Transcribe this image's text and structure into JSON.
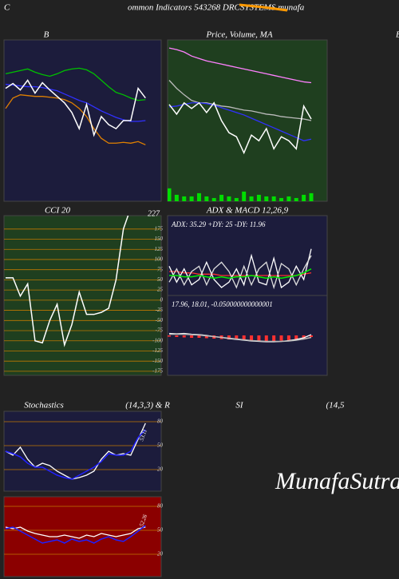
{
  "header": {
    "left": "C",
    "title": "ommon Indicators 543268 DRCSYSTEMS munafa"
  },
  "watermark": "MunafaSutra.com",
  "chart_data": [
    {
      "type": "line",
      "title": "B",
      "background": "#1c1c3c",
      "ylim": [
        0,
        100
      ],
      "series": [
        {
          "color": "#00c000",
          "values": [
            79,
            80,
            81,
            82,
            80,
            78.5,
            77.5,
            79,
            81,
            82,
            82.5,
            81.5,
            79,
            75,
            71,
            67.5,
            66,
            64,
            62.5,
            63
          ]
        },
        {
          "color": "#3030ff",
          "values": [
            72.5,
            72,
            71.5,
            71,
            71,
            70.5,
            69.5,
            68.5,
            66.5,
            64.5,
            62.5,
            61,
            58.5,
            56,
            54,
            52,
            50.5,
            49.5,
            49.5,
            50
          ]
        },
        {
          "color": "#e08000",
          "values": [
            57.5,
            64,
            66,
            65.5,
            65,
            65,
            64.5,
            64,
            63,
            61,
            57.5,
            52.5,
            45,
            39,
            36,
            36,
            36.5,
            36,
            37,
            35
          ]
        },
        {
          "color": "#ffffff",
          "values": [
            70,
            73,
            69,
            75,
            67,
            73.5,
            69,
            65,
            61,
            55,
            45,
            60,
            41,
            52.5,
            47.5,
            45,
            50,
            50,
            70,
            64
          ]
        }
      ]
    },
    {
      "type": "line",
      "title": "Price, Volume, MA",
      "side_label": "B",
      "background": "#1f3f1f",
      "ylim": [
        0,
        100
      ],
      "series": [
        {
          "color": "#ff80ff",
          "values": [
            95,
            94,
            92.5,
            90,
            88.5,
            87,
            86,
            85,
            84,
            83,
            82,
            81,
            80,
            79,
            78,
            77,
            76,
            75,
            74,
            73.5
          ]
        },
        {
          "color": "#bbbbbb",
          "values": [
            75,
            70,
            66,
            62.5,
            61,
            61,
            60,
            59,
            58.5,
            57.5,
            56.5,
            56,
            55,
            54,
            53.5,
            52.5,
            52,
            51.5,
            51,
            50
          ]
        },
        {
          "color": "#3030ff",
          "values": [
            58.5,
            59,
            60,
            61,
            61,
            60.5,
            59.5,
            58,
            56.5,
            55,
            53.5,
            51.5,
            49.5,
            47.5,
            45.5,
            43.5,
            41.5,
            39.5,
            37.5,
            38.5
          ]
        },
        {
          "color": "#ffffff",
          "values": [
            60,
            54,
            61,
            57.5,
            61,
            55,
            61,
            50,
            42.5,
            40,
            30,
            41,
            37.5,
            45,
            32.5,
            40,
            37.5,
            32.5,
            59,
            51
          ]
        }
      ],
      "volume": {
        "color": "#00dd00",
        "ylim": [
          0,
          100
        ],
        "values": [
          8,
          4,
          3,
          3,
          5,
          3,
          2,
          4,
          3,
          2,
          6,
          3,
          4,
          3,
          3,
          2,
          3,
          2,
          4,
          5
        ]
      }
    },
    {
      "type": "line",
      "title": "CCI 20",
      "background": "#1f3f1f",
      "ylim": [
        -185,
        208
      ],
      "yticks": [
        175,
        150,
        125,
        100,
        75,
        50,
        25,
        0,
        -25,
        -50,
        -75,
        -100,
        -125,
        -150,
        -175
      ],
      "grid": true,
      "grid_color": "#c07800",
      "readout": 227,
      "series": [
        {
          "color": "#ffffff",
          "values": [
            55,
            55,
            10,
            40,
            -100,
            -105,
            -50,
            -10,
            -110,
            -60,
            20,
            -35,
            -35,
            -30,
            -20,
            50,
            175,
            227,
            227,
            227
          ]
        }
      ]
    },
    {
      "type": "line",
      "title": "ADX  & MACD 12,26,9",
      "readout_text": "ADX: 35.29 +DY: 25 -DY: 11.96",
      "background": "#1c1c3c",
      "ylim": [
        0,
        60
      ],
      "series": [
        {
          "color": "#ff3030",
          "values": [
            18,
            18,
            17,
            17,
            16,
            16,
            16,
            15,
            15,
            15,
            15,
            15,
            15,
            15,
            15,
            15,
            15,
            15,
            16,
            17
          ]
        },
        {
          "color": "#ffffff",
          "values": [
            22,
            10,
            20,
            8,
            12,
            25,
            12,
            6,
            10,
            20,
            8,
            30,
            10,
            8,
            28,
            6,
            10,
            22,
            12,
            35
          ]
        },
        {
          "color": "#dddddd",
          "values": [
            10,
            20,
            8,
            18,
            22,
            8,
            20,
            25,
            18,
            6,
            22,
            8,
            20,
            25,
            6,
            24,
            20,
            8,
            20,
            30
          ]
        },
        {
          "color": "#00ee00",
          "values": [
            15,
            15,
            14,
            14,
            15,
            14,
            13,
            14,
            13,
            14,
            14,
            15,
            14,
            13,
            14,
            13,
            14,
            15,
            17,
            20
          ]
        }
      ]
    },
    {
      "type": "line",
      "readout_text": "17.96, 18.01, -0.050000000000001",
      "background": "#1c1c3c",
      "ylim": [
        -10,
        10
      ],
      "bars": {
        "color": "#ff3030",
        "values": [
          -0.3,
          -0.4,
          -0.5,
          -0.6,
          -0.6,
          -0.7,
          -0.8,
          -0.9,
          -1,
          -1.1,
          -1.2,
          -1.3,
          -1.3,
          -1.4,
          -1.4,
          -1.3,
          -1.2,
          -1,
          -0.8,
          -0.4
        ]
      },
      "series": [
        {
          "color": "#ffffff",
          "values": [
            0.5,
            0.4,
            0.5,
            0.3,
            0.2,
            0,
            -0.3,
            -0.5,
            -0.8,
            -1,
            -1.2,
            -1.4,
            -1.5,
            -1.6,
            -1.6,
            -1.5,
            -1.3,
            -1,
            -0.6,
            0.2
          ]
        },
        {
          "color": "#bbbbbb",
          "values": [
            0.3,
            0.3,
            0.3,
            0.2,
            0.1,
            -0.1,
            -0.3,
            -0.5,
            -0.7,
            -0.9,
            -1.1,
            -1.3,
            -1.4,
            -1.5,
            -1.5,
            -1.5,
            -1.4,
            -1.2,
            -0.9,
            -0.5
          ]
        }
      ]
    },
    {
      "type": "line",
      "title": "Stochastics",
      "subtitle": "(14,3,3) & R",
      "background": "#1c1c3c",
      "ylim": [
        -7,
        93
      ],
      "yticks": [
        80,
        50,
        20
      ],
      "grid": true,
      "grid_color": "#c07800",
      "readout": 53.11,
      "series": [
        {
          "color": "#ffffff",
          "values": [
            43,
            38,
            48,
            33,
            23,
            28,
            25,
            18,
            13,
            8,
            10,
            13,
            18,
            33,
            43,
            38,
            40,
            38,
            58,
            78
          ]
        },
        {
          "color": "#2020ff",
          "values": [
            43,
            40,
            36,
            28,
            23,
            23,
            18,
            13,
            10,
            8,
            13,
            18,
            23,
            30,
            40,
            38,
            38,
            43,
            60,
            70
          ]
        }
      ]
    },
    {
      "type": "line",
      "title": "SI",
      "subtitle": "(14,5",
      "background": "#8b0000",
      "ylim": [
        -8,
        92
      ],
      "yticks": [
        80,
        50,
        20
      ],
      "grid": true,
      "grid_color": "#c07800",
      "readout": 52.26,
      "series": [
        {
          "color": "#ffffff",
          "values": [
            54,
            52,
            54,
            49,
            46,
            44,
            42,
            42,
            44,
            42,
            40,
            44,
            42,
            46,
            44,
            42,
            44,
            46,
            52,
            54
          ]
        },
        {
          "color": "#2020ff",
          "values": [
            52,
            54,
            49,
            44,
            39,
            34,
            36,
            38,
            34,
            39,
            36,
            38,
            34,
            39,
            42,
            38,
            36,
            42,
            49,
            56
          ]
        }
      ]
    }
  ]
}
